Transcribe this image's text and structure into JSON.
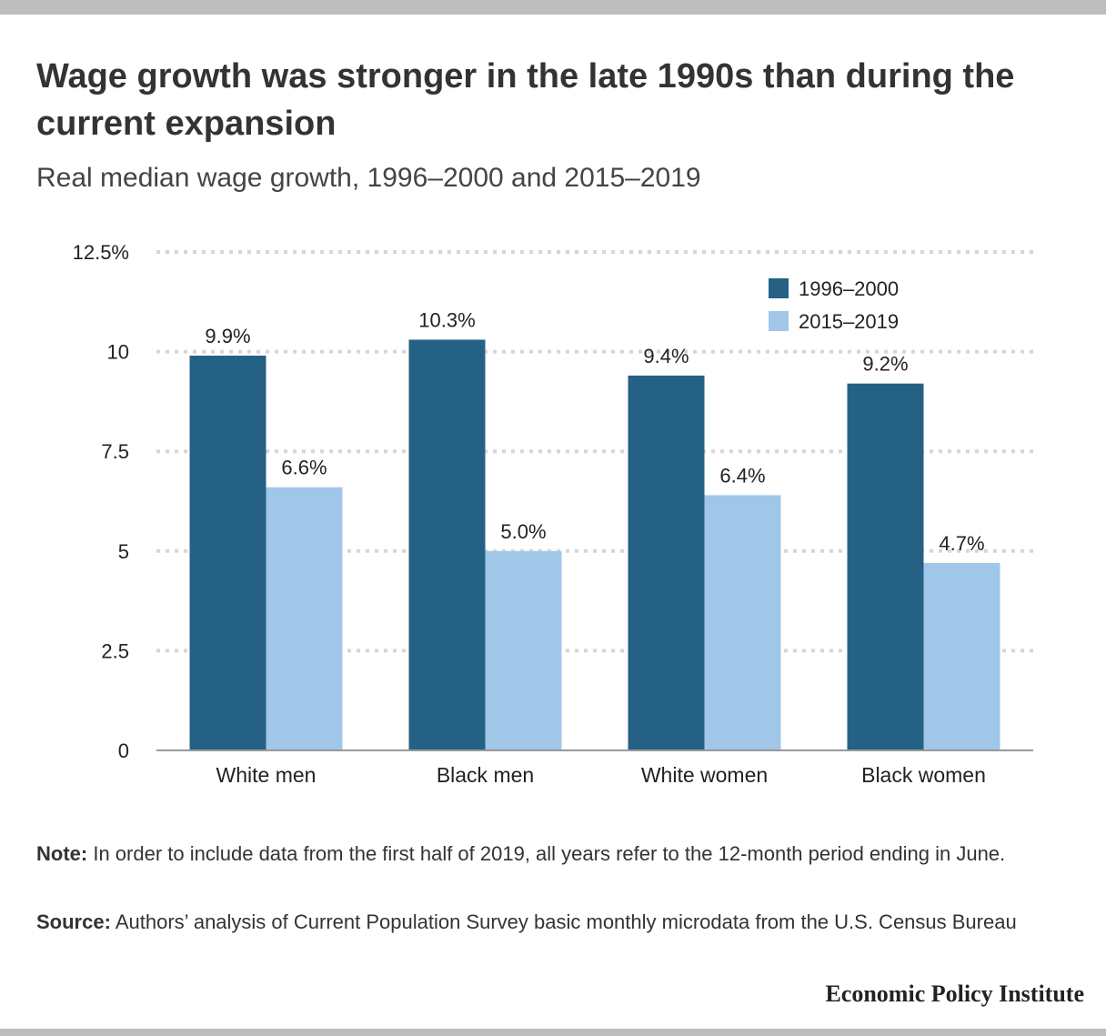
{
  "title": "Wage growth was stronger in the late 1990s than during the current expansion",
  "subtitle": "Real median wage growth, 1996–2000 and 2015–2019",
  "note": {
    "label": "Note:",
    "text": "In order to include data from the first half of 2019, all years refer to the 12-month period ending in June."
  },
  "source": {
    "label": "Source:",
    "text": "Authors’ analysis of Current Population Survey basic monthly microdata from the U.S. Census Bureau"
  },
  "brand": "Economic Policy Institute",
  "colors": {
    "series_1": "#256184",
    "series_2": "#a1c7e8",
    "grid": "#d6d6d6",
    "axis": "#999999"
  },
  "chart_data": {
    "type": "bar",
    "categories": [
      "White men",
      "Black men",
      "White women",
      "Black women"
    ],
    "series": [
      {
        "name": "1996–2000",
        "values": [
          9.9,
          10.3,
          9.4,
          9.2
        ],
        "labels": [
          "9.9%",
          "10.3%",
          "9.4%",
          "9.2%"
        ]
      },
      {
        "name": "2015–2019",
        "values": [
          6.6,
          5.0,
          6.4,
          4.7
        ],
        "labels": [
          "6.6%",
          "5.0%",
          "6.4%",
          "4.7%"
        ]
      }
    ],
    "ylim": [
      0,
      12.5
    ],
    "yticks": [
      0,
      2.5,
      5,
      7.5,
      10,
      12.5
    ],
    "ytick_labels": [
      "0",
      "2.5",
      "5",
      "7.5",
      "10",
      "12.5%"
    ],
    "grid": true,
    "legend": "top-right"
  }
}
